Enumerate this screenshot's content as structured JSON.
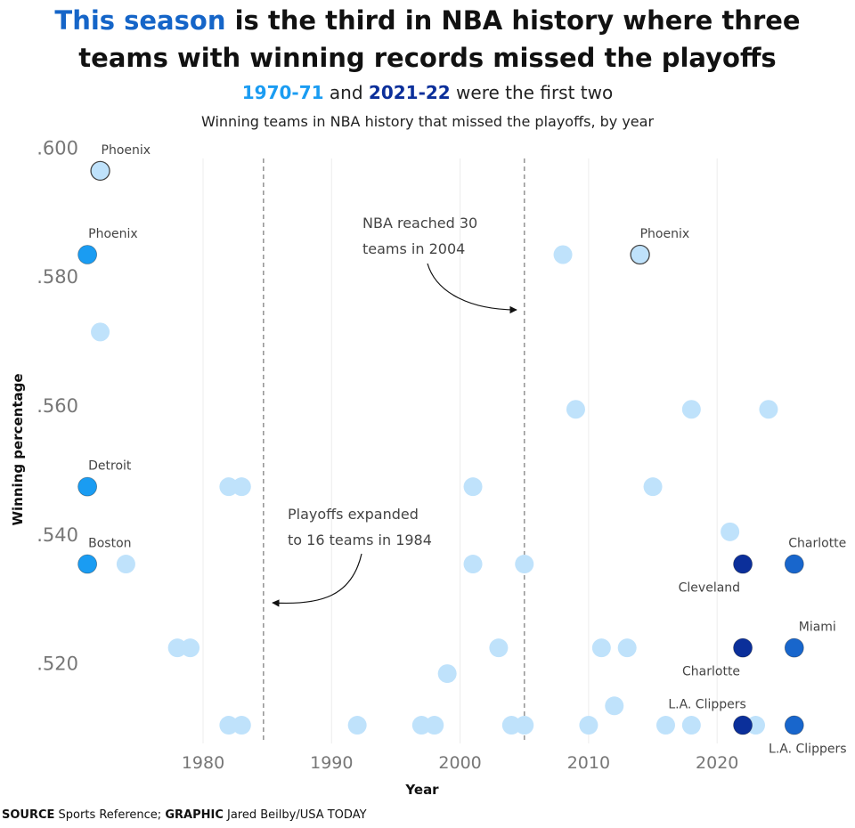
{
  "header": {
    "title_highlight": "This season",
    "title_rest_line1": " is the third in NBA history where three",
    "title_line2": "teams with winning records missed the playoffs",
    "subtitle_a": "1970-71",
    "subtitle_mid": " and ",
    "subtitle_b": "2021-22",
    "subtitle_end": " were the first two",
    "description": "Winning teams in NBA history that missed the playoffs, by year"
  },
  "colors": {
    "other": "#bfe2fb",
    "1970-71": "#1a9cf2",
    "2021-22": "#0b2f9a",
    "this-season": "#1866cc",
    "title_highlight": "#1565c8",
    "outline": "#444444"
  },
  "chart_data": {
    "type": "scatter",
    "xlabel": "Year",
    "ylabel": "Winning percentage",
    "xlim": [
      1970,
      2027
    ],
    "ylim": [
      0.507,
      0.6
    ],
    "x_ticks": [
      1980,
      1990,
      2000,
      2010,
      2020
    ],
    "y_ticks": [
      0.6,
      0.58,
      0.56,
      0.54,
      0.52
    ],
    "y_tick_labels": [
      ".600",
      ".580",
      ".560",
      ".540",
      ".520"
    ],
    "grid": "vertical",
    "points": [
      {
        "year": 1972,
        "pct": 0.598,
        "group": "other",
        "outlined": true,
        "label": "Phoenix",
        "label_pos": "above"
      },
      {
        "year": 1971,
        "pct": 0.585,
        "group": "1970-71",
        "label": "Phoenix",
        "label_pos": "above"
      },
      {
        "year": 1972,
        "pct": 0.573,
        "group": "other"
      },
      {
        "year": 1971,
        "pct": 0.549,
        "group": "1970-71",
        "label": "Detroit",
        "label_pos": "above"
      },
      {
        "year": 1971,
        "pct": 0.537,
        "group": "1970-71",
        "label": "Boston",
        "label_pos": "above"
      },
      {
        "year": 1974,
        "pct": 0.537,
        "group": "other"
      },
      {
        "year": 1978,
        "pct": 0.524,
        "group": "other"
      },
      {
        "year": 1979,
        "pct": 0.524,
        "group": "other"
      },
      {
        "year": 1982,
        "pct": 0.549,
        "group": "other"
      },
      {
        "year": 1983,
        "pct": 0.549,
        "group": "other"
      },
      {
        "year": 1982,
        "pct": 0.512,
        "group": "other"
      },
      {
        "year": 1983,
        "pct": 0.512,
        "group": "other"
      },
      {
        "year": 1992,
        "pct": 0.512,
        "group": "other"
      },
      {
        "year": 1997,
        "pct": 0.512,
        "group": "other"
      },
      {
        "year": 1998,
        "pct": 0.512,
        "group": "other"
      },
      {
        "year": 1999,
        "pct": 0.52,
        "group": "other"
      },
      {
        "year": 2001,
        "pct": 0.549,
        "group": "other"
      },
      {
        "year": 2001,
        "pct": 0.537,
        "group": "other"
      },
      {
        "year": 2003,
        "pct": 0.524,
        "group": "other"
      },
      {
        "year": 2004,
        "pct": 0.512,
        "group": "other"
      },
      {
        "year": 2005,
        "pct": 0.512,
        "group": "other"
      },
      {
        "year": 2005,
        "pct": 0.537,
        "group": "other"
      },
      {
        "year": 2008,
        "pct": 0.585,
        "group": "other"
      },
      {
        "year": 2009,
        "pct": 0.561,
        "group": "other"
      },
      {
        "year": 2010,
        "pct": 0.512,
        "group": "other"
      },
      {
        "year": 2011,
        "pct": 0.524,
        "group": "other"
      },
      {
        "year": 2012,
        "pct": 0.515,
        "group": "other"
      },
      {
        "year": 2013,
        "pct": 0.524,
        "group": "other"
      },
      {
        "year": 2014,
        "pct": 0.585,
        "group": "other",
        "outlined": true,
        "label": "Phoenix",
        "label_pos": "above"
      },
      {
        "year": 2015,
        "pct": 0.549,
        "group": "other"
      },
      {
        "year": 2016,
        "pct": 0.512,
        "group": "other"
      },
      {
        "year": 2018,
        "pct": 0.512,
        "group": "other"
      },
      {
        "year": 2018,
        "pct": 0.561,
        "group": "other"
      },
      {
        "year": 2021,
        "pct": 0.542,
        "group": "other"
      },
      {
        "year": 2023,
        "pct": 0.512,
        "group": "other"
      },
      {
        "year": 2024,
        "pct": 0.561,
        "group": "other"
      },
      {
        "year": 2022,
        "pct": 0.537,
        "group": "2021-22",
        "label": "Cleveland",
        "label_pos": "below"
      },
      {
        "year": 2022,
        "pct": 0.524,
        "group": "2021-22",
        "label": "Charlotte",
        "label_pos": "below"
      },
      {
        "year": 2022,
        "pct": 0.512,
        "group": "2021-22",
        "label": "L.A. Clippers",
        "label_pos": "above"
      },
      {
        "year": 2026,
        "pct": 0.537,
        "group": "this-season",
        "label": "Charlotte",
        "label_pos": "above"
      },
      {
        "year": 2026,
        "pct": 0.524,
        "group": "this-season",
        "label": "Miami",
        "label_pos": "above"
      },
      {
        "year": 2026,
        "pct": 0.512,
        "group": "this-season",
        "label": "L.A. Clippers",
        "label_pos": "below"
      }
    ],
    "reference_lines": [
      {
        "year": 1984.7,
        "annotation": [
          "Playoffs expanded",
          "to 16 teams in 1984"
        ]
      },
      {
        "year": 2005,
        "annotation": [
          "NBA reached 30",
          "teams in 2004"
        ]
      }
    ]
  },
  "footer": {
    "source_label": "SOURCE",
    "source": " Sports Reference; ",
    "graphic_label": "GRAPHIC",
    "graphic": " Jared Beilby/USA TODAY"
  }
}
